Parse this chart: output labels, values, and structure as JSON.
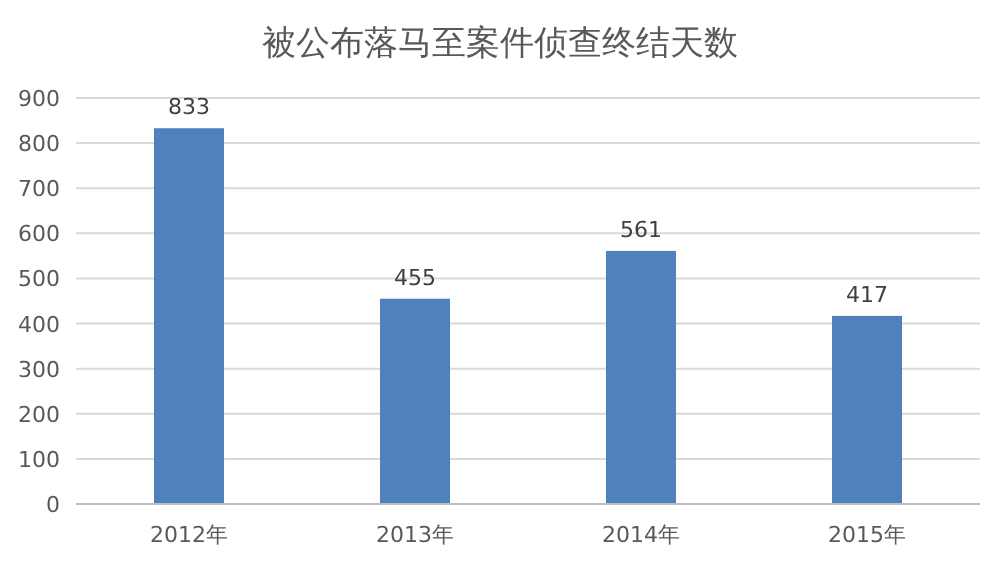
{
  "chart_data": {
    "type": "bar",
    "title": "被公布落马至案件侦查终结天数",
    "categories": [
      "2012年",
      "2013年",
      "2014年",
      "2015年"
    ],
    "values": [
      833,
      455,
      561,
      417
    ],
    "color": "#4f81bd",
    "ylim": [
      0,
      900
    ],
    "yticks": [
      0,
      100,
      200,
      300,
      400,
      500,
      600,
      700,
      800,
      900
    ],
    "grid": "y",
    "data_labels": true
  }
}
